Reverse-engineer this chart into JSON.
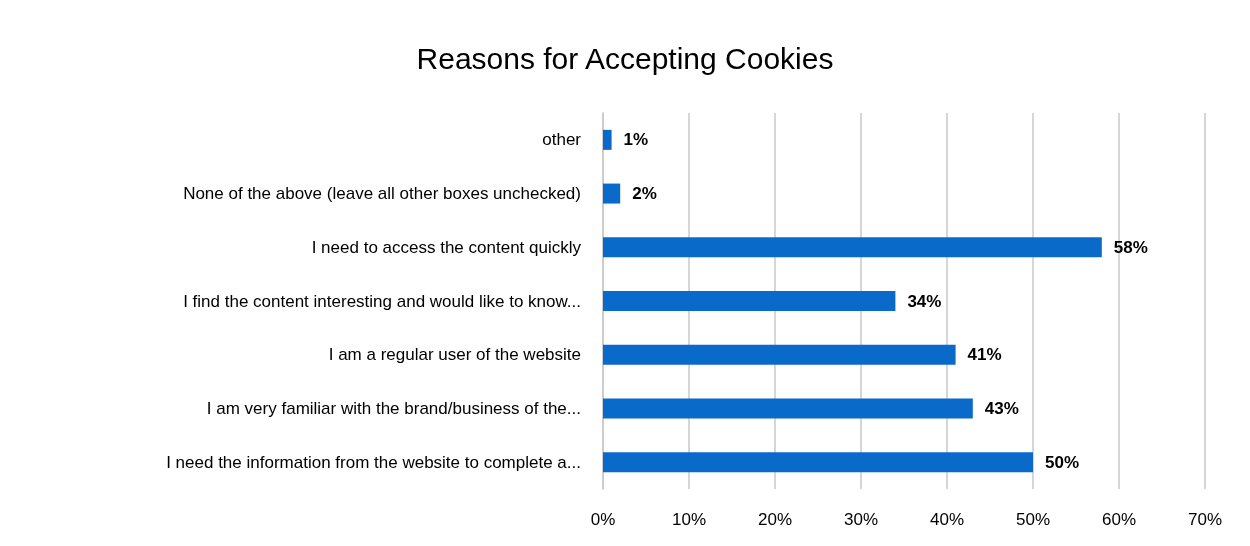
{
  "chart_data": {
    "type": "bar",
    "orientation": "horizontal",
    "title": "Reasons for Accepting Cookies",
    "categories": [
      "other",
      "None of the above (leave all other boxes unchecked)",
      "I need to access the content quickly",
      "I find the content interesting and would like to know...",
      "I am a regular user of the website",
      "I am very familiar with the brand/business of the...",
      "I need the information from the website to complete a..."
    ],
    "values": [
      1,
      2,
      58,
      34,
      41,
      43,
      50
    ],
    "value_labels": [
      "1%",
      "2%",
      "58%",
      "34%",
      "41%",
      "43%",
      "50%"
    ],
    "color": "#0a6ac9",
    "xlim": [
      0,
      70
    ],
    "xticks": [
      {
        "value": 0,
        "label": "0%"
      },
      {
        "value": 10,
        "label": "10%"
      },
      {
        "value": 20,
        "label": "20%"
      },
      {
        "value": 30,
        "label": "30%"
      },
      {
        "value": 40,
        "label": "40%"
      },
      {
        "value": 50,
        "label": "50%"
      },
      {
        "value": 60,
        "label": "60%"
      },
      {
        "value": 70,
        "label": "70%"
      }
    ],
    "grid": "x"
  }
}
